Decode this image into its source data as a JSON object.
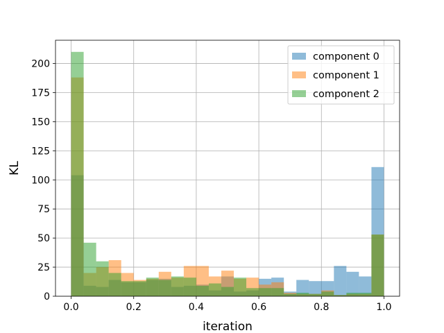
{
  "chart_data": {
    "type": "bar",
    "xlabel": "iteration",
    "ylabel": "KL",
    "xlim": [
      -0.05,
      1.05
    ],
    "ylim": [
      0,
      220
    ],
    "xticks": [
      0.0,
      0.2,
      0.4,
      0.6,
      0.8,
      1.0
    ],
    "xtick_labels": [
      "0.0",
      "0.2",
      "0.4",
      "0.6",
      "0.8",
      "1.0"
    ],
    "yticks": [
      0,
      25,
      50,
      75,
      100,
      125,
      150,
      175,
      200
    ],
    "ytick_labels": [
      "0",
      "25",
      "50",
      "75",
      "100",
      "125",
      "150",
      "175",
      "200"
    ],
    "grid": true,
    "legend_position": "top-right",
    "bin_edges": [
      0.0,
      0.04,
      0.08,
      0.12,
      0.16,
      0.2,
      0.24,
      0.28,
      0.32,
      0.36,
      0.4,
      0.44,
      0.48,
      0.52,
      0.56,
      0.6,
      0.64,
      0.68,
      0.72,
      0.76,
      0.8,
      0.84,
      0.88,
      0.92,
      0.96,
      1.0
    ],
    "series": [
      {
        "name": "component 0",
        "color": "#1f77b4",
        "values": [
          104,
          9,
          8,
          14,
          12,
          12,
          14,
          15,
          8,
          9,
          10,
          5,
          17,
          4,
          5,
          15,
          16,
          4,
          14,
          13,
          13,
          26,
          21,
          17,
          111
        ]
      },
      {
        "name": "component 1",
        "color": "#ff7f0e",
        "values": [
          188,
          20,
          25,
          31,
          20,
          14,
          15,
          21,
          16,
          26,
          26,
          17,
          22,
          15,
          16,
          10,
          12,
          3,
          2,
          2,
          5,
          1,
          2,
          2,
          53
        ]
      },
      {
        "name": "component 2",
        "color": "#2ca02c",
        "values": [
          210,
          46,
          30,
          20,
          13,
          13,
          16,
          14,
          17,
          16,
          9,
          11,
          8,
          16,
          7,
          7,
          7,
          2,
          3,
          2,
          4,
          1,
          3,
          3,
          53
        ]
      }
    ]
  }
}
